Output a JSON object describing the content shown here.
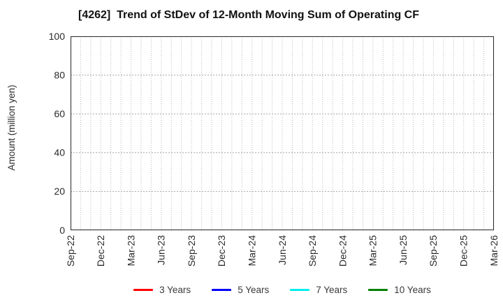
{
  "chart_data": {
    "type": "line",
    "title": "[4262]  Trend of StDev of 12-Month Moving Sum of Operating CF",
    "ylabel": "Amount (million yen)",
    "xlabel": "",
    "ylim": [
      0,
      100
    ],
    "yticks": [
      0,
      20,
      40,
      60,
      80,
      100
    ],
    "x_tick_labels": [
      "Sep-22",
      "Dec-22",
      "Mar-23",
      "Jun-23",
      "Sep-23",
      "Dec-23",
      "Mar-24",
      "Jun-24",
      "Sep-24",
      "Dec-24",
      "Mar-25",
      "Jun-25",
      "Sep-25",
      "Dec-25",
      "Mar-26"
    ],
    "x_total_intervals": 42,
    "x_label_every_n_intervals": 3,
    "grid": true,
    "legend_position": "bottom",
    "series": [
      {
        "name": "3 Years",
        "color": "#ff0000",
        "values": []
      },
      {
        "name": "5 Years",
        "color": "#0000ff",
        "values": []
      },
      {
        "name": "7 Years",
        "color": "#00eeee",
        "values": []
      },
      {
        "name": "10 Years",
        "color": "#008000",
        "values": []
      }
    ]
  },
  "colors": {
    "background": "#ffffff",
    "axis_border": "#262626",
    "grid_vertical": "#b8b8b8",
    "grid_horizontal": "#a6a6a6",
    "tick_label": "#2b2b2b",
    "title_text": "#111111",
    "legend_text": "#3a3a3a"
  }
}
